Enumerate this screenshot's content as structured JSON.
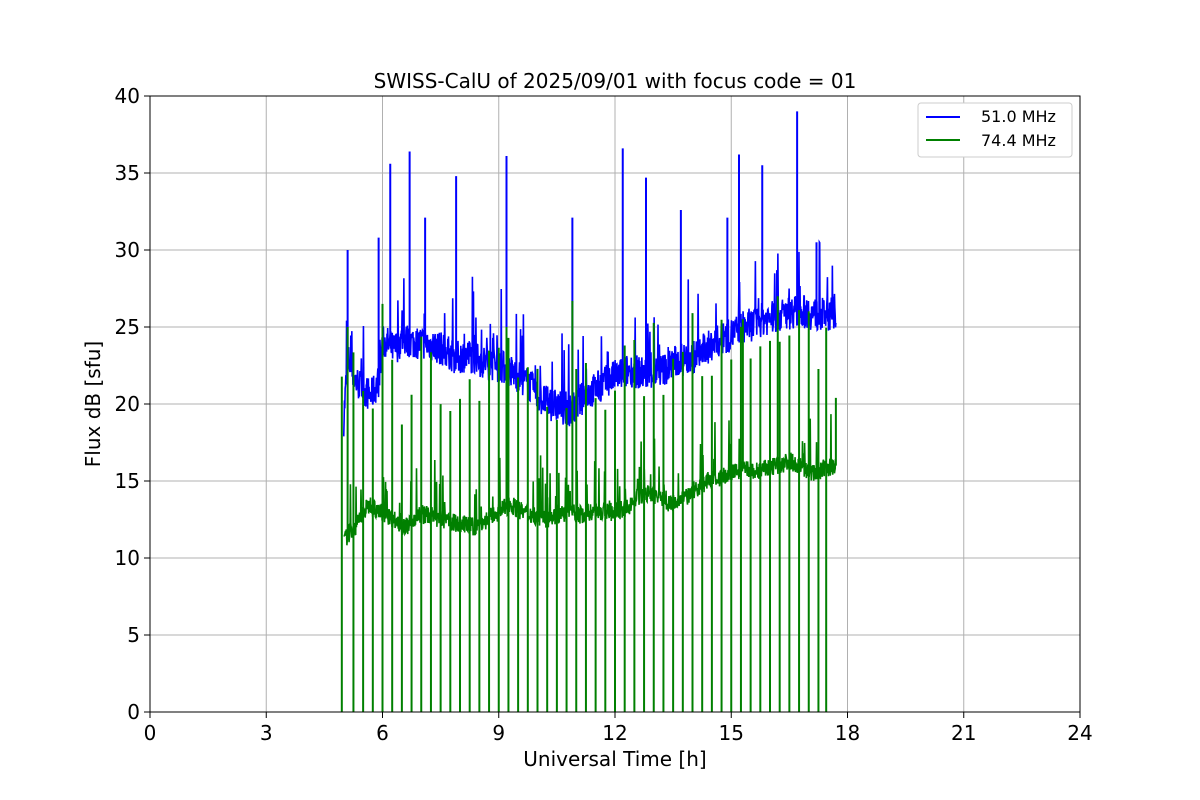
{
  "chart_data": {
    "type": "line",
    "title": "SWISS-CalU of 2025/09/01 with focus code = 01",
    "xlabel": "Universal Time [h]",
    "ylabel": "Flux dB [sfu]",
    "xlim": [
      0,
      24
    ],
    "ylim": [
      0,
      40
    ],
    "xticks": [
      0,
      3,
      6,
      9,
      12,
      15,
      18,
      21,
      24
    ],
    "yticks": [
      0,
      5,
      10,
      15,
      20,
      25,
      30,
      35,
      40
    ],
    "grid": true,
    "legend_position": "top-right",
    "series": [
      {
        "name": "51.0 MHz",
        "color": "#0000ff",
        "x": [
          5.0,
          5.1,
          5.3,
          5.5,
          5.7,
          5.9,
          6.0,
          6.1,
          6.3,
          6.5,
          6.8,
          7.0,
          7.3,
          7.6,
          7.9,
          8.2,
          8.5,
          8.8,
          9.0,
          9.2,
          9.5,
          9.8,
          10.0,
          10.3,
          10.6,
          10.9,
          11.2,
          11.5,
          11.8,
          12.0,
          12.2,
          12.4,
          12.7,
          13.0,
          13.3,
          13.6,
          14.0,
          14.3,
          14.6,
          15.0,
          15.3,
          15.6,
          15.8,
          16.0,
          16.3,
          16.6,
          16.9,
          17.2,
          17.5,
          17.7
        ],
        "y": [
          19.0,
          23.0,
          21.5,
          21.0,
          20.5,
          21.5,
          24.0,
          24.0,
          23.5,
          24.2,
          24.0,
          24.0,
          23.8,
          23.5,
          23.0,
          23.2,
          22.8,
          22.6,
          22.5,
          22.3,
          21.8,
          21.2,
          20.5,
          20.0,
          19.8,
          19.6,
          20.5,
          21.0,
          21.5,
          21.8,
          22.0,
          22.2,
          22.0,
          22.0,
          22.3,
          22.8,
          23.0,
          23.5,
          24.0,
          24.5,
          25.0,
          25.2,
          25.5,
          25.6,
          25.8,
          26.0,
          26.0,
          25.8,
          25.8,
          26.0
        ],
        "spikes": [
          [
            5.1,
            30.0
          ],
          [
            5.9,
            30.8
          ],
          [
            6.2,
            35.6
          ],
          [
            6.7,
            36.4
          ],
          [
            7.1,
            32.1
          ],
          [
            7.9,
            34.8
          ],
          [
            9.2,
            36.1
          ],
          [
            10.9,
            32.1
          ],
          [
            12.2,
            36.6
          ],
          [
            12.8,
            34.7
          ],
          [
            13.7,
            32.6
          ],
          [
            14.9,
            32.1
          ],
          [
            15.2,
            36.2
          ],
          [
            15.8,
            35.5
          ],
          [
            16.7,
            39.0
          ],
          [
            17.2,
            30.5
          ]
        ]
      },
      {
        "name": "74.4 MHz",
        "color": "#008000",
        "x": [
          5.0,
          5.1,
          5.3,
          5.5,
          5.7,
          5.9,
          6.0,
          6.3,
          6.6,
          6.9,
          7.2,
          7.5,
          7.8,
          8.1,
          8.4,
          8.7,
          9.0,
          9.3,
          9.6,
          9.9,
          10.2,
          10.5,
          10.8,
          11.1,
          11.4,
          11.7,
          12.0,
          12.3,
          12.6,
          12.9,
          13.2,
          13.5,
          13.8,
          14.1,
          14.4,
          14.7,
          15.0,
          15.3,
          15.6,
          15.9,
          16.2,
          16.5,
          16.8,
          17.1,
          17.4,
          17.7
        ],
        "y": [
          11.0,
          11.5,
          12.0,
          13.0,
          13.5,
          13.0,
          13.0,
          12.5,
          12.0,
          12.8,
          12.8,
          12.5,
          12.3,
          12.2,
          12.0,
          12.5,
          13.0,
          13.5,
          13.0,
          12.8,
          12.5,
          12.8,
          13.0,
          12.8,
          13.0,
          13.0,
          13.0,
          13.2,
          14.0,
          14.2,
          13.8,
          13.5,
          13.8,
          14.5,
          15.0,
          15.2,
          15.5,
          15.8,
          15.6,
          15.8,
          16.0,
          16.3,
          16.0,
          15.5,
          15.8,
          16.0
        ],
        "spikes": [
          [
            5.1,
            25.0
          ],
          [
            6.0,
            26.5
          ],
          [
            9.2,
            25.0
          ],
          [
            10.9,
            26.7
          ],
          [
            15.3,
            25.5
          ],
          [
            16.2,
            27.0
          ],
          [
            17.7,
            20.4
          ]
        ],
        "dropouts": [
          4.95,
          5.25,
          5.5,
          5.75,
          6.0,
          6.25,
          6.5,
          6.75,
          7.0,
          7.25,
          7.5,
          7.75,
          8.0,
          8.25,
          8.5,
          8.75,
          9.0,
          9.25,
          9.5,
          9.75,
          10.0,
          10.25,
          10.5,
          10.75,
          11.0,
          11.25,
          11.5,
          11.75,
          12.0,
          12.25,
          12.5,
          12.75,
          13.0,
          13.25,
          13.5,
          13.75,
          14.0,
          14.25,
          14.5,
          14.75,
          15.0,
          15.25,
          15.5,
          15.75,
          16.0,
          16.25,
          16.5,
          16.75,
          17.0,
          17.25,
          17.45
        ]
      }
    ]
  }
}
